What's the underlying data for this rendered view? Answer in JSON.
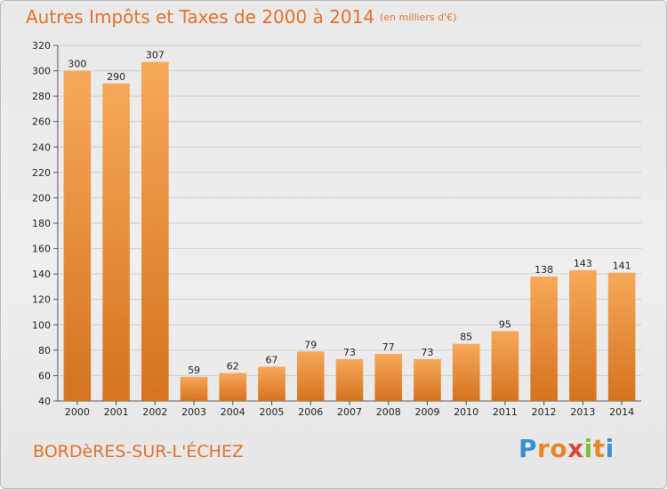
{
  "title": "Autres Impôts et Taxes de 2000 à 2014",
  "subtitle": "(en milliers d'€)",
  "town": "BORDèRES-SUR-L'ÉCHEZ",
  "logo": {
    "letters": [
      "P",
      "r",
      "o",
      "x",
      "i",
      "t",
      "i"
    ],
    "colors": [
      "#3a8fd0",
      "#e8872a",
      "#e8872a",
      "#d64a3a",
      "#7cbf3a",
      "#e8872a",
      "#3a8fd0"
    ]
  },
  "colors": {
    "title": "#e0732a",
    "bar_top": "#f7a859",
    "bar_bottom": "#d4731f",
    "grid": "#cfcfcf"
  },
  "chart_data": {
    "type": "bar",
    "categories": [
      "2000",
      "2001",
      "2002",
      "2003",
      "2004",
      "2005",
      "2006",
      "2007",
      "2008",
      "2009",
      "2010",
      "2011",
      "2012",
      "2013",
      "2014"
    ],
    "values": [
      300,
      290,
      307,
      59,
      62,
      67,
      79,
      73,
      77,
      73,
      85,
      95,
      138,
      143,
      141
    ],
    "data_labels": [
      "300",
      "290",
      "307",
      "59",
      "62",
      "67",
      "79",
      "73",
      "77",
      "73",
      "85",
      "95",
      "138",
      "143",
      "141"
    ],
    "title": "Autres Impôts et Taxes de 2000 à 2014",
    "subtitle": "(en milliers d'€)",
    "ylim": [
      40,
      320
    ],
    "yticks": [
      "40",
      "60",
      "80",
      "100",
      "120",
      "140",
      "160",
      "180",
      "200",
      "220",
      "240",
      "260",
      "280",
      "300",
      "320"
    ],
    "grid": true,
    "legend": "none"
  }
}
